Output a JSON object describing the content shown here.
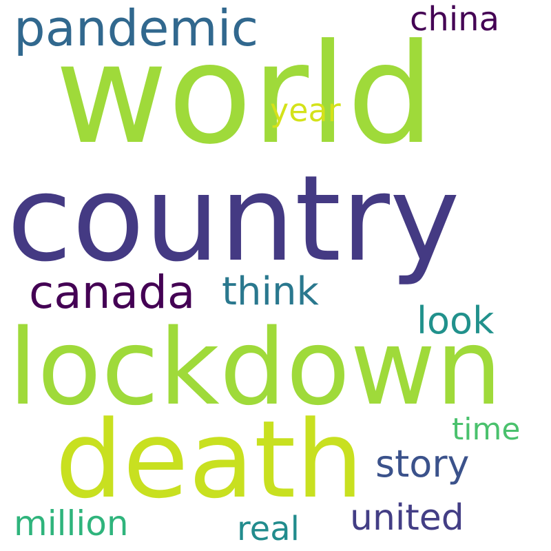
{
  "words": [
    {
      "text": "world",
      "color": "#9fda3a"
    },
    {
      "text": "country",
      "color": "#443a83"
    },
    {
      "text": "lockdown",
      "color": "#9fda3a"
    },
    {
      "text": "death",
      "color": "#c8e020"
    },
    {
      "text": "pandemic",
      "color": "#31688e"
    },
    {
      "text": "canada",
      "color": "#440154"
    },
    {
      "text": "china",
      "color": "#440154"
    },
    {
      "text": "year",
      "color": "#d4e21a"
    },
    {
      "text": "think",
      "color": "#2a788e"
    },
    {
      "text": "look",
      "color": "#21918c"
    },
    {
      "text": "time",
      "color": "#4ac16d"
    },
    {
      "text": "story",
      "color": "#3b528b"
    },
    {
      "text": "million",
      "color": "#2fb47c"
    },
    {
      "text": "real",
      "color": "#228c8d"
    },
    {
      "text": "united",
      "color": "#433e85"
    }
  ]
}
